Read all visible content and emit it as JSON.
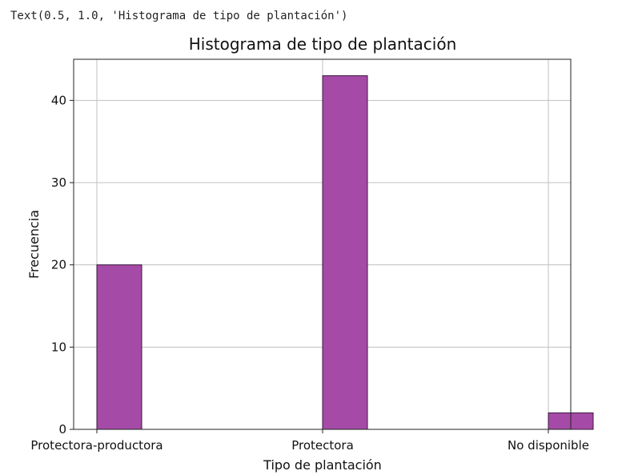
{
  "output_text": "Text(0.5, 1.0, 'Histograma de tipo de plantación')",
  "colors": {
    "bar_fill": "#a54ba7",
    "bar_edge": "#3a183c",
    "grid": "#c0c0c0"
  },
  "chart_data": {
    "type": "bar",
    "title": "Histograma de tipo de plantación",
    "xlabel": "Tipo de plantación",
    "ylabel": "Frecuencia",
    "categories": [
      "Protectora-productora",
      "Protectora",
      "No disponible"
    ],
    "values": [
      20,
      43,
      2
    ],
    "yticks": [
      0,
      10,
      20,
      30,
      40
    ],
    "ylim": [
      0,
      45
    ],
    "grid": true
  }
}
